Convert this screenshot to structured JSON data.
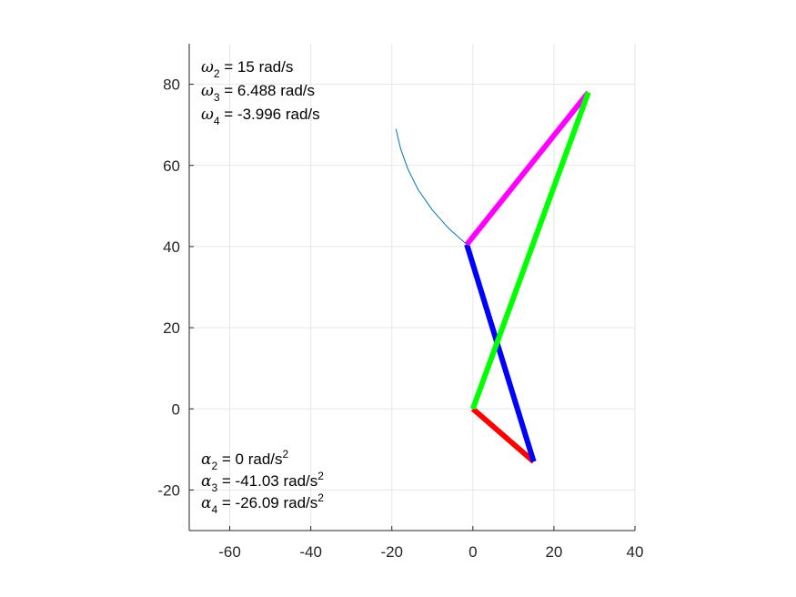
{
  "chart_data": {
    "type": "line",
    "xlim": [
      -70,
      40
    ],
    "ylim": [
      -30,
      90
    ],
    "xticks": [
      -60,
      -40,
      -20,
      0,
      20,
      40
    ],
    "yticks": [
      -20,
      0,
      20,
      40,
      60,
      80
    ],
    "grid": true,
    "axis_box": "left-bottom",
    "series": [
      {
        "color": "#ff0000",
        "linewidth": "thick",
        "x": [
          0,
          15
        ],
        "y": [
          0,
          -13
        ]
      },
      {
        "color": "#0000ff",
        "linewidth": "thick",
        "x": [
          15,
          -1.5
        ],
        "y": [
          -13,
          40.5
        ]
      },
      {
        "color": "#ff00ff",
        "linewidth": "thick",
        "x": [
          -1.5,
          28.5
        ],
        "y": [
          40.5,
          78
        ]
      },
      {
        "color": "#00ff00",
        "linewidth": "thick",
        "x": [
          0,
          28.5
        ],
        "y": [
          0,
          78
        ]
      },
      {
        "color": "#0072bd",
        "linewidth": "thin",
        "x": [
          -1.5,
          -6,
          -10,
          -13.5,
          -16,
          -17.8,
          -19
        ],
        "y": [
          40.5,
          44.5,
          49,
          54,
          59,
          64,
          69
        ]
      }
    ],
    "annotations": {
      "omega": [
        {
          "symbol": "ω",
          "sub": "2",
          "text": " = 15 rad/s",
          "sup": ""
        },
        {
          "symbol": "ω",
          "sub": "3",
          "text": " = 6.488 rad/s",
          "sup": ""
        },
        {
          "symbol": "ω",
          "sub": "4",
          "text": " = -3.996 rad/s",
          "sup": ""
        }
      ],
      "alpha": [
        {
          "symbol": "α",
          "sub": "2",
          "text": " = 0 rad/s",
          "sup": "2"
        },
        {
          "symbol": "α",
          "sub": "3",
          "text": " = -41.03 rad/s",
          "sup": "2"
        },
        {
          "symbol": "α",
          "sub": "4",
          "text": " = -26.09 rad/s",
          "sup": "2"
        }
      ]
    }
  }
}
